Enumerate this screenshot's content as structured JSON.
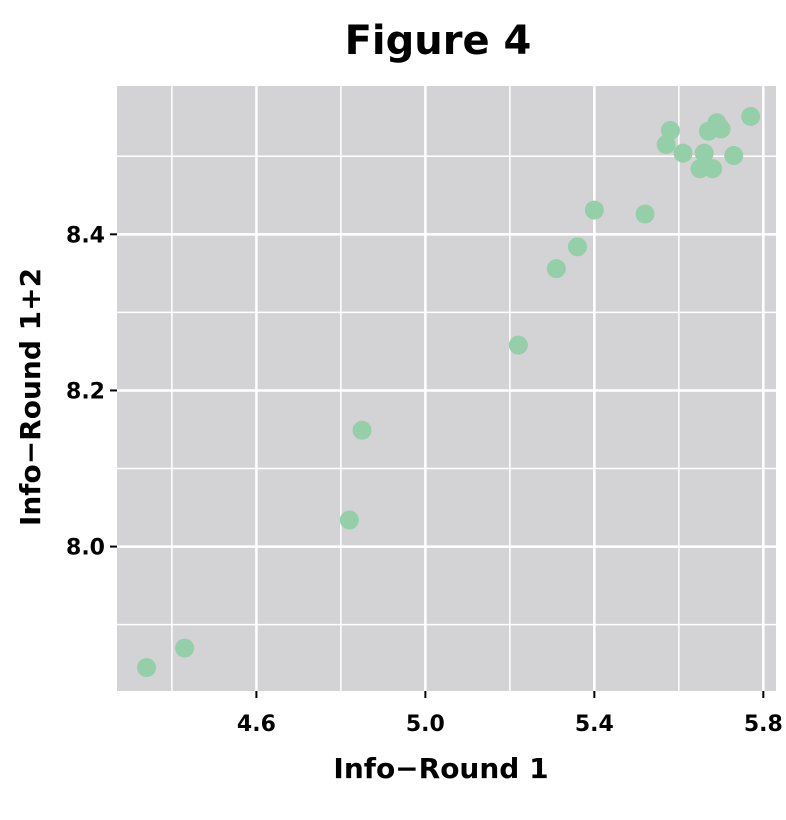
{
  "chart_data": {
    "type": "scatter",
    "title": "Figure 4",
    "xlabel": "Info−Round 1",
    "ylabel": "Info−Round 1+2",
    "xlim": [
      4.27,
      5.83
    ],
    "ylim": [
      7.815,
      8.59
    ],
    "x_ticks": [
      4.6,
      5.0,
      5.4,
      5.8
    ],
    "x_tick_labels": [
      "4.6",
      "5.0",
      "5.4",
      "5.8"
    ],
    "y_ticks": [
      8.0,
      8.2,
      8.4
    ],
    "y_tick_labels": [
      "8.0",
      "8.2",
      "8.4"
    ],
    "grid": true,
    "background_color": "#d3d3d5",
    "grid_color": "#ffffff",
    "point_color": "#94cfa9",
    "points": [
      {
        "x": 4.34,
        "y": 7.845
      },
      {
        "x": 4.43,
        "y": 7.87
      },
      {
        "x": 4.82,
        "y": 8.034
      },
      {
        "x": 4.85,
        "y": 8.149
      },
      {
        "x": 5.22,
        "y": 8.258
      },
      {
        "x": 5.31,
        "y": 8.356
      },
      {
        "x": 5.36,
        "y": 8.384
      },
      {
        "x": 5.4,
        "y": 8.431
      },
      {
        "x": 5.52,
        "y": 8.426
      },
      {
        "x": 5.57,
        "y": 8.515
      },
      {
        "x": 5.58,
        "y": 8.533
      },
      {
        "x": 5.61,
        "y": 8.504
      },
      {
        "x": 5.65,
        "y": 8.484
      },
      {
        "x": 5.66,
        "y": 8.504
      },
      {
        "x": 5.67,
        "y": 8.532
      },
      {
        "x": 5.68,
        "y": 8.484
      },
      {
        "x": 5.69,
        "y": 8.543
      },
      {
        "x": 5.7,
        "y": 8.535
      },
      {
        "x": 5.73,
        "y": 8.501
      },
      {
        "x": 5.77,
        "y": 8.551
      }
    ]
  }
}
